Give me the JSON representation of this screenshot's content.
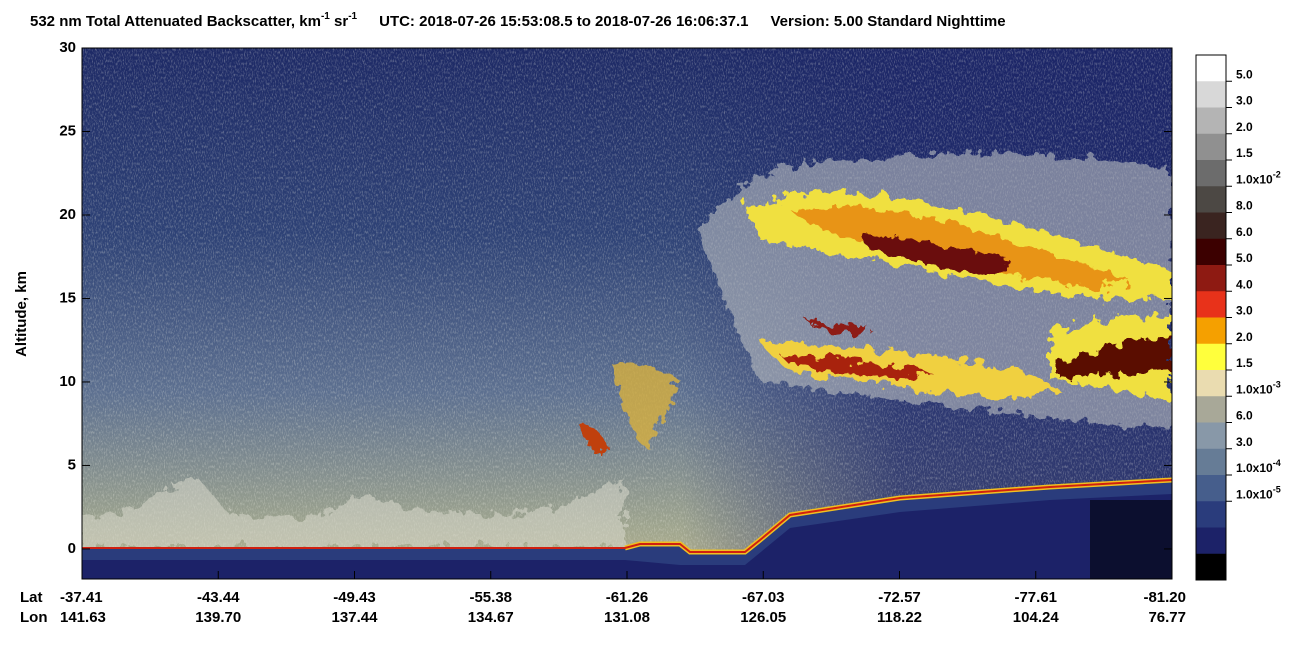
{
  "chart_data": {
    "type": "heatmap",
    "title": {
      "main": "532 nm Total Attenuated Backscatter, km",
      "exp1": "-1",
      "mid": " sr",
      "exp2": "-1",
      "utc": "UTC:  2018-07-26 15:53:08.5  to  2018-07-26 16:06:37.1",
      "version": "Version: 5.00  Standard  Nighttime"
    },
    "y_label": "Altitude, km",
    "ylim": [
      -1.8,
      30
    ],
    "yticks": [
      0,
      5,
      10,
      15,
      20,
      25,
      30
    ],
    "x_row_labels": [
      "Lat",
      "Lon"
    ],
    "lat": [
      "-37.41",
      "-43.44",
      "-49.43",
      "-55.38",
      "-61.26",
      "-67.03",
      "-72.57",
      "-77.61",
      "-81.20"
    ],
    "lon": [
      "141.63",
      "139.70",
      "137.44",
      "134.67",
      "131.08",
      "126.05",
      "118.22",
      "104.24",
      "76.77"
    ],
    "colorbar": {
      "colors": [
        "#ffffff",
        "#d8d8d8",
        "#b4b4b4",
        "#909090",
        "#6c6c6c",
        "#4c4844",
        "#3a2420",
        "#3c0000",
        "#8e1a12",
        "#e8321a",
        "#f5a000",
        "#ffff3c",
        "#eadcb0",
        "#a8a898",
        "#8898a8",
        "#667c96",
        "#465e8c",
        "#2a3c7c",
        "#1c2268",
        "#000000"
      ],
      "labels": [
        {
          "base": "5.0"
        },
        {
          "base": "3.0"
        },
        {
          "base": "2.0"
        },
        {
          "base": "1.5"
        },
        {
          "base": "1.0x10",
          "exp": "-2"
        },
        {
          "base": "8.0"
        },
        {
          "base": "6.0"
        },
        {
          "base": "5.0"
        },
        {
          "base": "4.0"
        },
        {
          "base": "3.0"
        },
        {
          "base": "2.0"
        },
        {
          "base": "1.5"
        },
        {
          "base": "1.0x10",
          "exp": "-3"
        },
        {
          "base": "6.0"
        },
        {
          "base": "3.0"
        },
        {
          "base": "1.0x10",
          "exp": "-4"
        },
        {
          "base": "1.0x10",
          "exp": "-5"
        }
      ]
    }
  }
}
